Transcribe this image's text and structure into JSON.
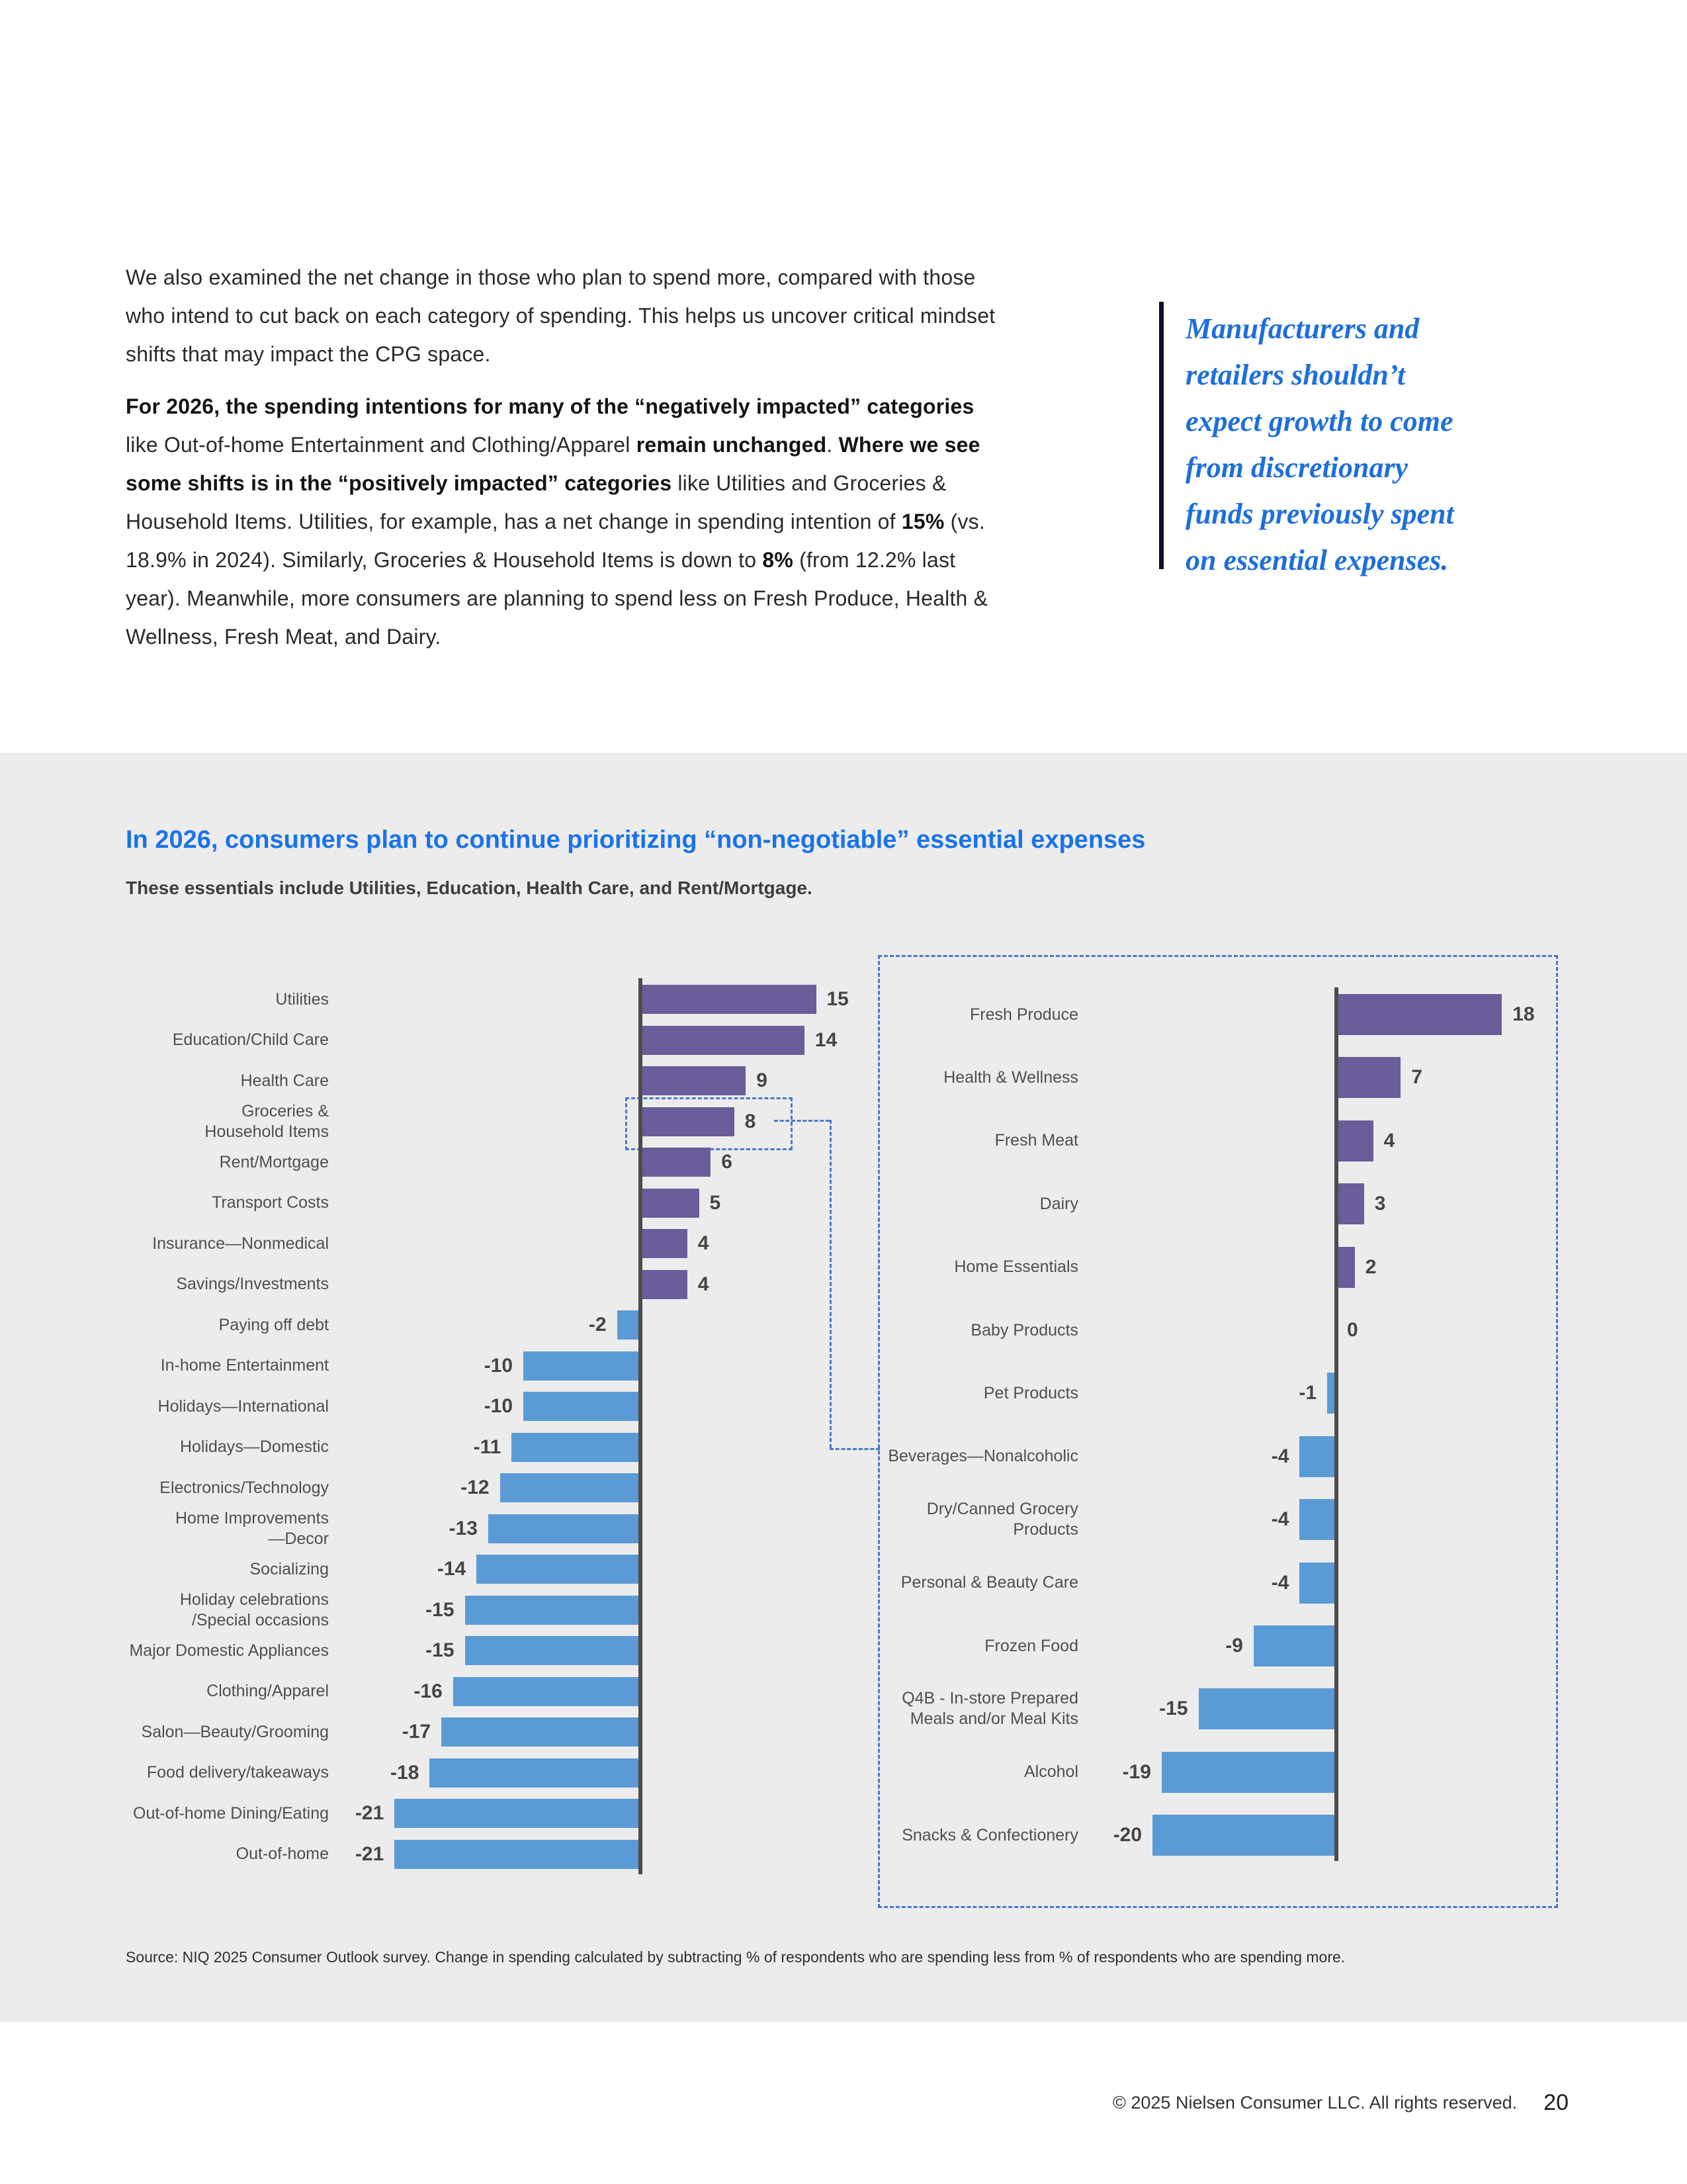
{
  "intro": {
    "paragraph1": "We also examined the net change in those who plan to spend more, compared with those who intend to cut back on each category of spending. This helps us uncover critical mindset shifts that may impact the CPG space.",
    "paragraph2_segments": [
      {
        "text": "For 2026, the spending intentions for many of the “negatively impacted” categories",
        "bold": true
      },
      {
        "text": " like Out-of-home Entertainment and Clothing/Apparel ",
        "bold": false
      },
      {
        "text": "remain unchanged",
        "bold": true
      },
      {
        "text": ". ",
        "bold": false
      },
      {
        "text": "Where we see some shifts is in the “positively impacted” categories",
        "bold": true
      },
      {
        "text": " like Utilities and Groceries & Household Items. Utilities, for example, has a net change in spending intention of ",
        "bold": false
      },
      {
        "text": "15%",
        "bold": true
      },
      {
        "text": " (vs. 18.9% in 2024). Similarly, Groceries & Household Items is down to ",
        "bold": false
      },
      {
        "text": "8%",
        "bold": true
      },
      {
        "text": " (from 12.2% last year). Meanwhile, more consumers are planning to spend less on Fresh Produce, Health & Wellness, Fresh Meat, and Dairy.",
        "bold": false
      }
    ]
  },
  "pull_quote": {
    "lines": [
      "Manufacturers and",
      "retailers shouldn’t",
      "expect growth to come",
      "from discretionary",
      "funds previously spent",
      "on essential expenses."
    ],
    "text_color": "#1e6fd9",
    "rule_color": "#10102b"
  },
  "section": {
    "title": "In 2026, consumers plan to continue prioritizing “non-negotiable” essential expenses",
    "subtitle": "These essentials include Utilities, Education, Health Care, and Rent/Mortgage.",
    "title_color": "#1a73e8",
    "background": "#ececec",
    "source_note": "Source: NIQ 2025 Consumer Outlook survey. Change in spending calculated by subtracting % of respondents who are spending less from % of respondents who are spending more."
  },
  "chart_data": [
    {
      "type": "bar",
      "orientation": "horizontal",
      "name": "overall-spending-categories",
      "categories": [
        "Utilities",
        "Education/Child Care",
        "Health Care",
        "Groceries &\nHousehold Items",
        "Rent/Mortgage",
        "Transport Costs",
        "Insurance—Nonmedical",
        "Savings/Investments",
        "Paying off debt",
        "In-home Entertainment",
        "Holidays—International",
        "Holidays—Domestic",
        "Electronics/Technology",
        "Home Improvements\n—Decor",
        "Socializing",
        "Holiday celebrations\n/Special occasions",
        "Major Domestic Appliances",
        "Clothing/Apparel",
        "Salon—Beauty/Grooming",
        "Food delivery/takeaways",
        "Out-of-home Dining/Eating",
        "Out-of-home"
      ],
      "values": [
        15,
        14,
        9,
        8,
        6,
        5,
        4,
        4,
        -2,
        -10,
        -10,
        -11,
        -12,
        -13,
        -14,
        -15,
        -15,
        -16,
        -17,
        -18,
        -21,
        -21
      ],
      "positive_color": "#6a5d99",
      "negative_color": "#5b9bd5",
      "axis_color": "#4c4c4c",
      "highlight_category": "Groceries &\nHousehold Items",
      "value_unit": "net % change in spending intention"
    },
    {
      "type": "bar",
      "orientation": "horizontal",
      "name": "grocery-household-subcategories",
      "categories": [
        "Fresh Produce",
        "Health & Wellness",
        "Fresh Meat",
        "Dairy",
        "Home Essentials",
        "Baby Products",
        "Pet Products",
        "Beverages—Nonalcoholic",
        "Dry/Canned Grocery\nProducts",
        "Personal & Beauty Care",
        "Frozen Food",
        "Q4B - In-store Prepared\nMeals and/or Meal Kits",
        "Alcohol",
        "Snacks & Confectionery"
      ],
      "values": [
        18,
        7,
        4,
        3,
        2,
        0,
        -1,
        -4,
        -4,
        -4,
        -9,
        -15,
        -19,
        -20
      ],
      "positive_color": "#6a5d99",
      "negative_color": "#5b9bd5",
      "axis_color": "#4c4c4c",
      "value_unit": "net % change in spending intention"
    }
  ],
  "annotations": {
    "dashed_accent_color": "#4a78c8"
  },
  "footer": {
    "copyright": "© 2025 Nielsen Consumer LLC. All rights reserved.",
    "page_number": "20"
  }
}
